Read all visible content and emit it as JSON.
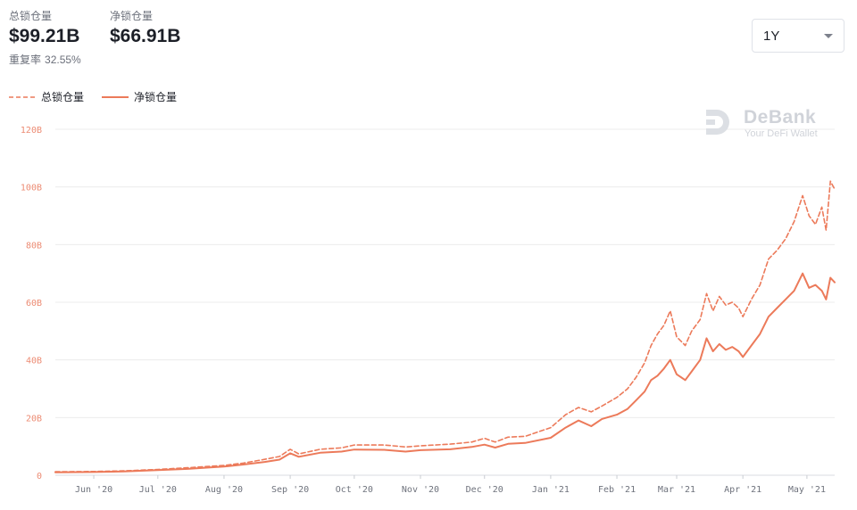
{
  "header": {
    "total_label": "总锁仓量",
    "total_value": "$99.21B",
    "net_label": "净锁仓量",
    "net_value": "$66.91B",
    "ratio_label": "重复率",
    "ratio_value": "32.55%"
  },
  "range_selector": {
    "value": "1Y"
  },
  "watermark": {
    "title": "DeBank",
    "subtitle": "Your DeFi Wallet",
    "logo_icon": "debank-logo-icon"
  },
  "colors": {
    "series": "#ec7a5a",
    "grid": "#ececec",
    "tick": "#ec8b73"
  },
  "chart_data": {
    "type": "line",
    "ylim": [
      0,
      120
    ],
    "yticks": [
      "0",
      "20B",
      "40B",
      "60B",
      "80B",
      "100B",
      "120B"
    ],
    "ytick_values": [
      0,
      20,
      40,
      60,
      80,
      100,
      120
    ],
    "xlim": [
      "2020-05-14",
      "2021-05-14"
    ],
    "xticks": [
      "Jun '20",
      "Jul '20",
      "Aug '20",
      "Sep '20",
      "Oct '20",
      "Nov '20",
      "Dec '20",
      "Jan '21",
      "Feb '21",
      "Mar '21",
      "Apr '21",
      "May '21"
    ],
    "xtick_dates": [
      "2020-06-01",
      "2020-07-01",
      "2020-08-01",
      "2020-09-01",
      "2020-10-01",
      "2020-11-01",
      "2020-12-01",
      "2021-01-01",
      "2021-02-01",
      "2021-03-01",
      "2021-04-01",
      "2021-05-01"
    ],
    "legend_position": "top-left",
    "grid": true,
    "series": [
      {
        "name": "总锁仓量",
        "style": "dashed",
        "points": [
          [
            "2020-05-14",
            1.2
          ],
          [
            "2020-06-01",
            1.3
          ],
          [
            "2020-06-15",
            1.5
          ],
          [
            "2020-07-01",
            2.0
          ],
          [
            "2020-07-15",
            2.6
          ],
          [
            "2020-08-01",
            3.4
          ],
          [
            "2020-08-10",
            4.2
          ],
          [
            "2020-08-20",
            5.5
          ],
          [
            "2020-08-27",
            6.5
          ],
          [
            "2020-09-01",
            9.0
          ],
          [
            "2020-09-05",
            7.4
          ],
          [
            "2020-09-15",
            9.0
          ],
          [
            "2020-09-25",
            9.5
          ],
          [
            "2020-10-01",
            10.5
          ],
          [
            "2020-10-15",
            10.5
          ],
          [
            "2020-10-25",
            9.8
          ],
          [
            "2020-11-01",
            10.2
          ],
          [
            "2020-11-15",
            10.8
          ],
          [
            "2020-11-25",
            11.5
          ],
          [
            "2020-12-01",
            12.8
          ],
          [
            "2020-12-06",
            11.5
          ],
          [
            "2020-12-12",
            13.2
          ],
          [
            "2020-12-20",
            13.5
          ],
          [
            "2021-01-01",
            16.5
          ],
          [
            "2021-01-08",
            21.0
          ],
          [
            "2021-01-14",
            23.5
          ],
          [
            "2021-01-20",
            22.0
          ],
          [
            "2021-01-25",
            24.0
          ],
          [
            "2021-02-01",
            27.0
          ],
          [
            "2021-02-06",
            30.0
          ],
          [
            "2021-02-10",
            34.0
          ],
          [
            "2021-02-14",
            39.0
          ],
          [
            "2021-02-17",
            45.0
          ],
          [
            "2021-02-20",
            49.0
          ],
          [
            "2021-02-23",
            52.0
          ],
          [
            "2021-02-26",
            57.0
          ],
          [
            "2021-03-01",
            48.0
          ],
          [
            "2021-03-05",
            45.0
          ],
          [
            "2021-03-08",
            50.0
          ],
          [
            "2021-03-12",
            54.0
          ],
          [
            "2021-03-15",
            63.0
          ],
          [
            "2021-03-18",
            57.0
          ],
          [
            "2021-03-21",
            62.0
          ],
          [
            "2021-03-24",
            59.0
          ],
          [
            "2021-03-27",
            60.0
          ],
          [
            "2021-03-30",
            58.0
          ],
          [
            "2021-04-01",
            55.0
          ],
          [
            "2021-04-05",
            61.0
          ],
          [
            "2021-04-09",
            66.0
          ],
          [
            "2021-04-13",
            75.0
          ],
          [
            "2021-04-17",
            78.0
          ],
          [
            "2021-04-21",
            82.0
          ],
          [
            "2021-04-25",
            88.0
          ],
          [
            "2021-04-29",
            97.0
          ],
          [
            "2021-05-02",
            90.0
          ],
          [
            "2021-05-05",
            87.0
          ],
          [
            "2021-05-08",
            93.0
          ],
          [
            "2021-05-10",
            85.0
          ],
          [
            "2021-05-12",
            102.0
          ],
          [
            "2021-05-14",
            99.2
          ]
        ]
      },
      {
        "name": "净锁仓量",
        "style": "solid",
        "points": [
          [
            "2020-05-14",
            1.0
          ],
          [
            "2020-06-01",
            1.1
          ],
          [
            "2020-06-15",
            1.3
          ],
          [
            "2020-07-01",
            1.8
          ],
          [
            "2020-07-15",
            2.2
          ],
          [
            "2020-08-01",
            3.0
          ],
          [
            "2020-08-10",
            3.7
          ],
          [
            "2020-08-20",
            4.6
          ],
          [
            "2020-08-27",
            5.4
          ],
          [
            "2020-09-01",
            7.6
          ],
          [
            "2020-09-05",
            6.4
          ],
          [
            "2020-09-15",
            7.8
          ],
          [
            "2020-09-25",
            8.2
          ],
          [
            "2020-10-01",
            8.9
          ],
          [
            "2020-10-15",
            8.8
          ],
          [
            "2020-10-25",
            8.2
          ],
          [
            "2020-11-01",
            8.7
          ],
          [
            "2020-11-15",
            9.0
          ],
          [
            "2020-11-25",
            9.8
          ],
          [
            "2020-12-01",
            10.6
          ],
          [
            "2020-12-06",
            9.6
          ],
          [
            "2020-12-12",
            10.9
          ],
          [
            "2020-12-20",
            11.2
          ],
          [
            "2021-01-01",
            13.0
          ],
          [
            "2021-01-08",
            16.5
          ],
          [
            "2021-01-14",
            19.0
          ],
          [
            "2021-01-20",
            17.0
          ],
          [
            "2021-01-25",
            19.5
          ],
          [
            "2021-02-01",
            21.0
          ],
          [
            "2021-02-06",
            23.0
          ],
          [
            "2021-02-10",
            26.0
          ],
          [
            "2021-02-14",
            29.0
          ],
          [
            "2021-02-17",
            33.0
          ],
          [
            "2021-02-20",
            34.5
          ],
          [
            "2021-02-23",
            37.0
          ],
          [
            "2021-02-26",
            40.0
          ],
          [
            "2021-03-01",
            35.0
          ],
          [
            "2021-03-05",
            33.0
          ],
          [
            "2021-03-08",
            36.0
          ],
          [
            "2021-03-12",
            40.0
          ],
          [
            "2021-03-15",
            47.5
          ],
          [
            "2021-03-18",
            43.0
          ],
          [
            "2021-03-21",
            45.5
          ],
          [
            "2021-03-24",
            43.5
          ],
          [
            "2021-03-27",
            44.5
          ],
          [
            "2021-03-30",
            43.0
          ],
          [
            "2021-04-01",
            41.0
          ],
          [
            "2021-04-05",
            45.0
          ],
          [
            "2021-04-09",
            49.0
          ],
          [
            "2021-04-13",
            55.0
          ],
          [
            "2021-04-17",
            58.0
          ],
          [
            "2021-04-21",
            61.0
          ],
          [
            "2021-04-25",
            64.0
          ],
          [
            "2021-04-29",
            70.0
          ],
          [
            "2021-05-02",
            65.0
          ],
          [
            "2021-05-05",
            66.0
          ],
          [
            "2021-05-08",
            64.0
          ],
          [
            "2021-05-10",
            61.0
          ],
          [
            "2021-05-12",
            68.5
          ],
          [
            "2021-05-14",
            66.9
          ]
        ]
      }
    ]
  }
}
